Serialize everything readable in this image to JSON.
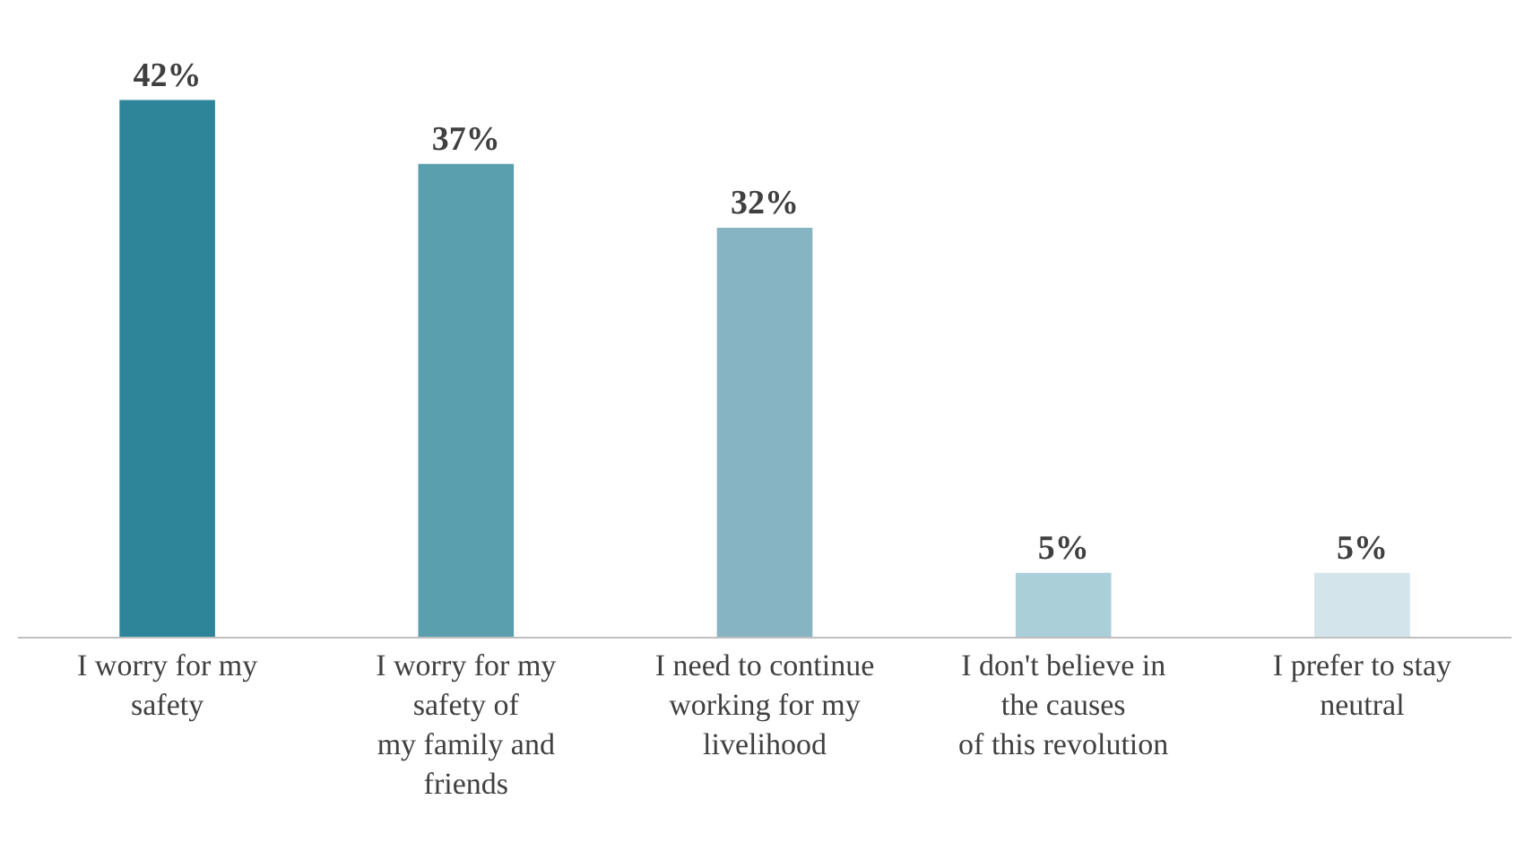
{
  "chart_data": {
    "type": "bar",
    "categories": [
      "I worry for my\nsafety",
      "I worry for my\nsafety of\nmy family and\nfriends",
      "I need to continue\nworking for my\nlivelihood",
      "I don't believe in\nthe causes\nof this revolution",
      "I prefer to stay\nneutral"
    ],
    "values": [
      42,
      37,
      32,
      5,
      5
    ],
    "colors": [
      "#2e8599",
      "#5a9fae",
      "#86b4c2",
      "#abcfd9",
      "#d3e5ea"
    ],
    "value_labels": [
      "42%",
      "37%",
      "32%",
      "5%",
      "5%"
    ],
    "legend": false
  }
}
